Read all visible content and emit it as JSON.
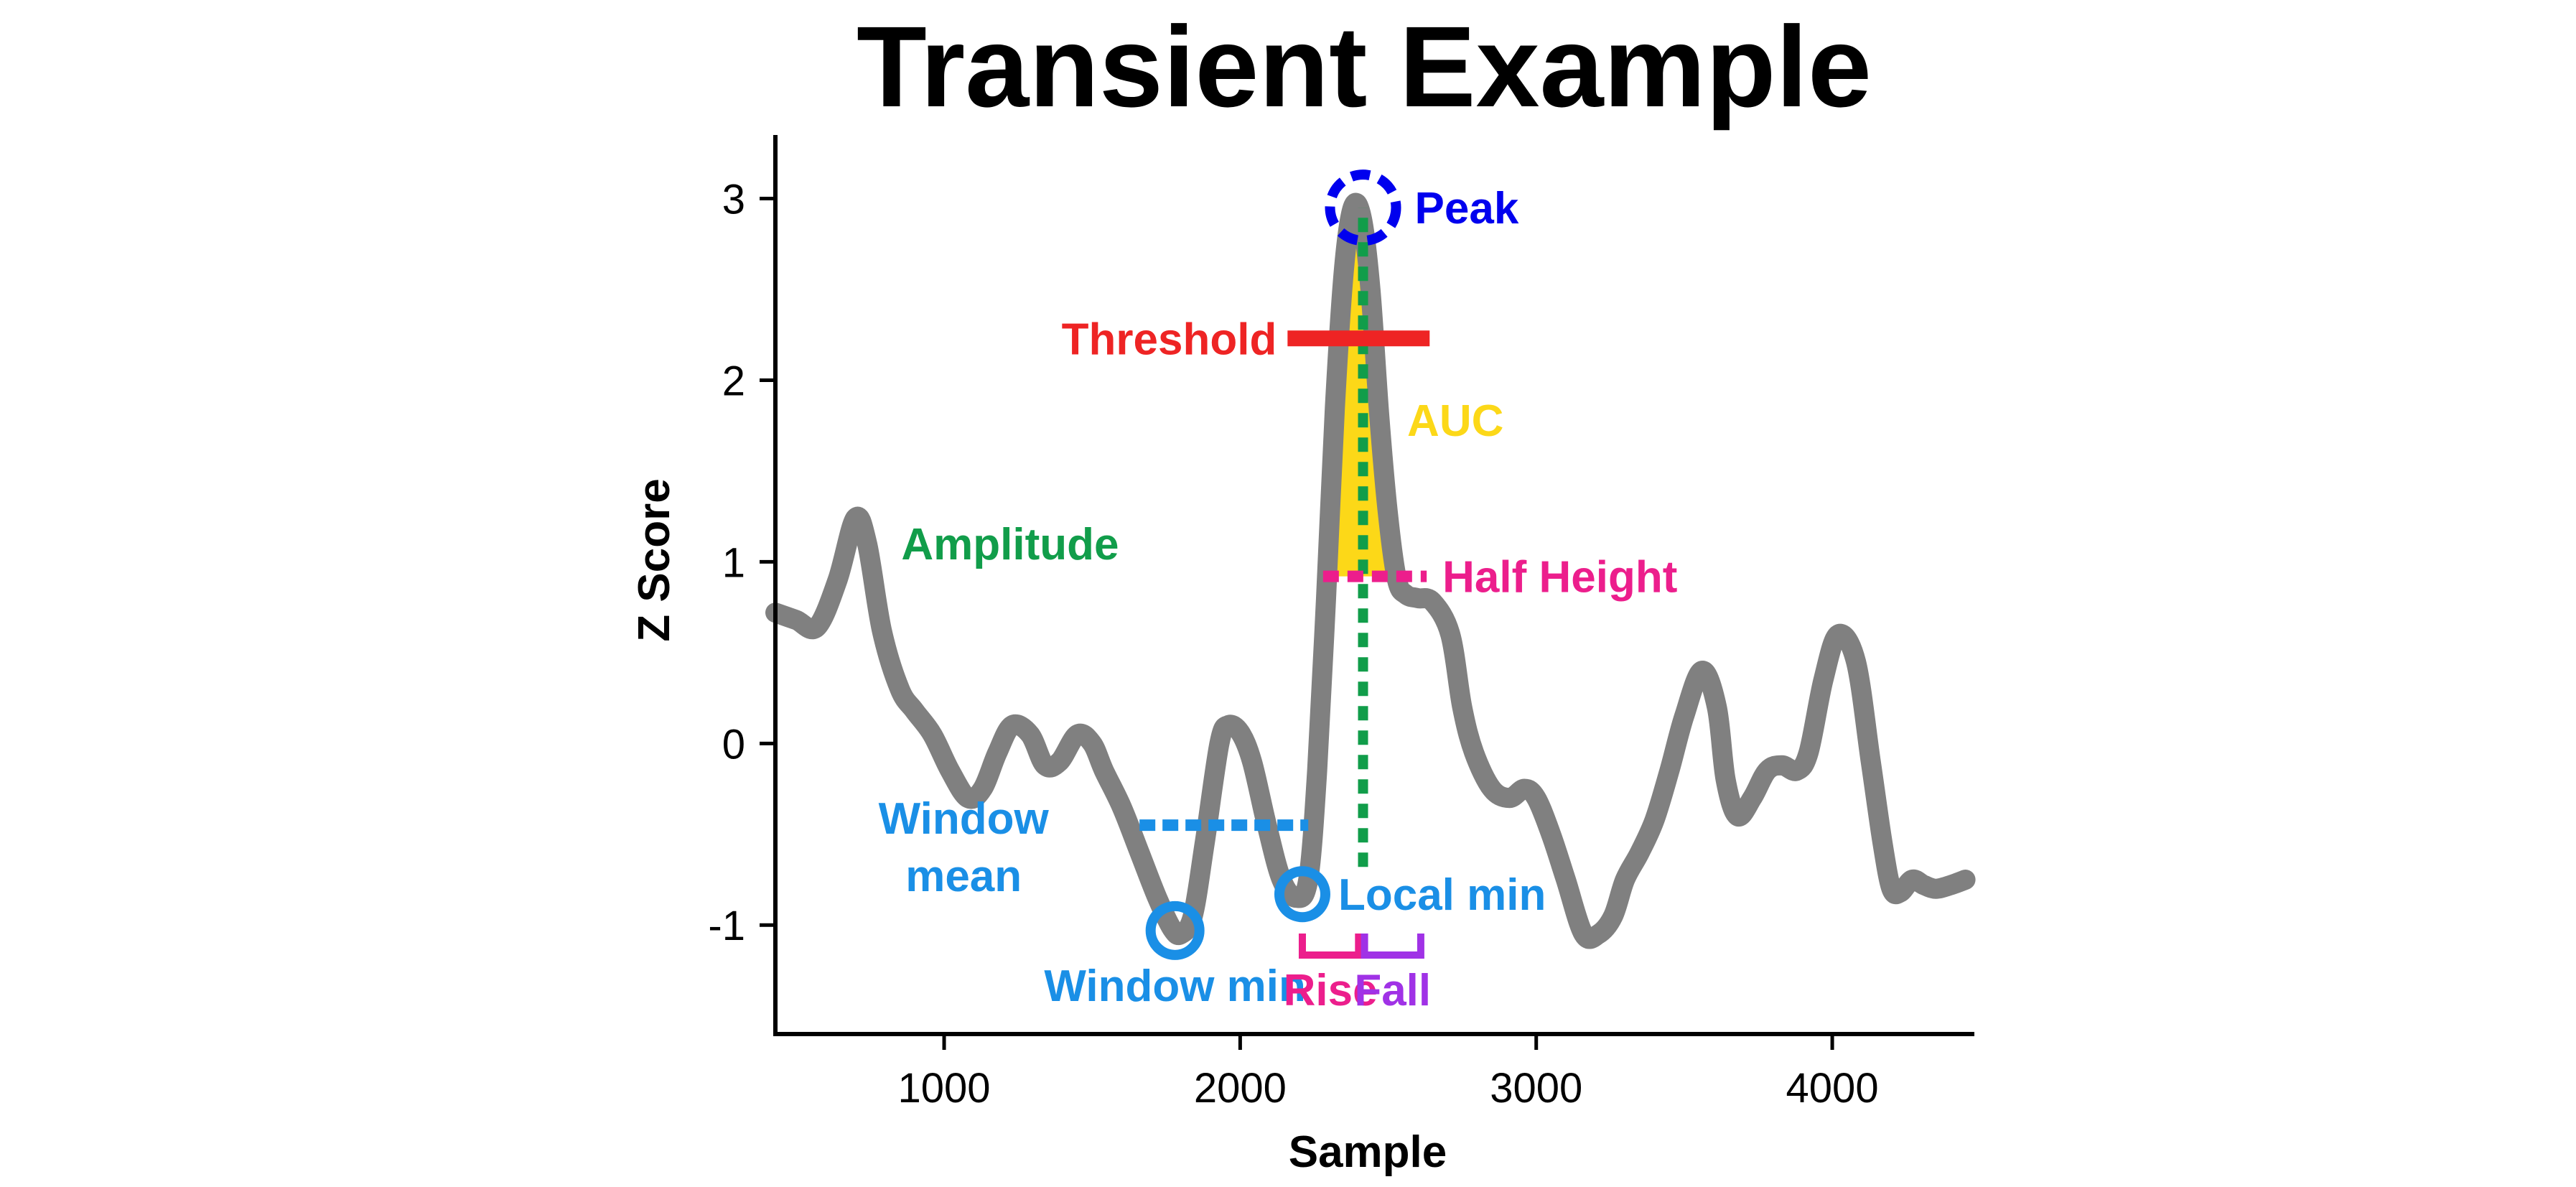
{
  "chart_data": {
    "type": "line",
    "title": "Transient Example",
    "xlabel": "Sample",
    "ylabel": "Z Score",
    "xlim": [
      430,
      4480
    ],
    "ylim": [
      -1.6,
      3.35
    ],
    "xticks": [
      1000,
      2000,
      3000,
      4000
    ],
    "yticks": [
      3,
      2,
      1,
      0,
      -1
    ],
    "grid": false,
    "series": [
      {
        "color": "#808080",
        "x": [
          430,
          500,
          570,
          640,
          700,
          740,
          790,
          850,
          900,
          960,
          1020,
          1080,
          1130,
          1180,
          1230,
          1290,
          1340,
          1390,
          1450,
          1500,
          1540,
          1600,
          1660,
          1720,
          1770,
          1800,
          1840,
          1880,
          1930,
          1960,
          2000,
          2040,
          2090,
          2140,
          2190,
          2230,
          2260,
          2290,
          2320,
          2350,
          2380,
          2410,
          2440,
          2470,
          2500,
          2530,
          2560,
          2600,
          2650,
          2710,
          2750,
          2790,
          2850,
          2910,
          2960,
          3000,
          3050,
          3100,
          3160,
          3210,
          3260,
          3300,
          3350,
          3400,
          3450,
          3500,
          3560,
          3610,
          3640,
          3680,
          3730,
          3780,
          3830,
          3880,
          3920,
          3970,
          4020,
          4080,
          4130,
          4170,
          4200,
          4230,
          4270,
          4310,
          4350,
          4400,
          4450
        ],
        "y": [
          0.72,
          0.68,
          0.64,
          0.9,
          1.24,
          1.1,
          0.62,
          0.3,
          0.18,
          0.05,
          -0.15,
          -0.3,
          -0.25,
          -0.05,
          0.1,
          0.05,
          -0.12,
          -0.1,
          0.05,
          0.0,
          -0.15,
          -0.35,
          -0.6,
          -0.85,
          -1.02,
          -1.05,
          -0.95,
          -0.55,
          0.0,
          0.1,
          0.06,
          -0.1,
          -0.45,
          -0.75,
          -0.85,
          -0.75,
          -0.15,
          0.8,
          1.85,
          2.6,
          2.95,
          2.9,
          2.5,
          1.8,
          1.25,
          0.9,
          0.82,
          0.8,
          0.78,
          0.6,
          0.2,
          -0.05,
          -0.25,
          -0.3,
          -0.25,
          -0.3,
          -0.5,
          -0.75,
          -1.05,
          -1.05,
          -0.95,
          -0.75,
          -0.6,
          -0.42,
          -0.15,
          0.15,
          0.4,
          0.2,
          -0.2,
          -0.4,
          -0.3,
          -0.15,
          -0.12,
          -0.15,
          -0.05,
          0.35,
          0.6,
          0.45,
          -0.1,
          -0.55,
          -0.8,
          -0.82,
          -0.75,
          -0.78,
          -0.8,
          -0.78,
          -0.75
        ]
      }
    ],
    "annotations": {
      "peak": {
        "label": "Peak",
        "x": 2415,
        "y": 2.95,
        "color": "#0000ee"
      },
      "threshold": {
        "label": "Threshold",
        "y": 2.23,
        "x_range": [
          2160,
          2640
        ],
        "color": "#ee2424"
      },
      "auc": {
        "label": "AUC",
        "color": "#fcd818",
        "x_range": [
          2290,
          2540
        ]
      },
      "amplitude": {
        "label": "Amplitude",
        "x": 2415,
        "y_range": [
          -0.68,
          2.95
        ],
        "color": "#119d4a"
      },
      "half_height": {
        "label": "Half Height",
        "y": 0.92,
        "x_range": [
          2280,
          2630
        ],
        "color": "#ec1e8c"
      },
      "window_mean": {
        "label": [
          "Window",
          "mean"
        ],
        "y": -0.45,
        "x_range": [
          1660,
          2230
        ],
        "color": "#1a8fe6"
      },
      "local_min": {
        "label": "Local min",
        "x": 2210,
        "y": -0.83,
        "color": "#1a8fe6"
      },
      "window_min": {
        "label": "Window min",
        "x": 1780,
        "y": -1.03,
        "color": "#1a8fe6"
      },
      "rise": {
        "label": "Rise",
        "x_range": [
          2210,
          2400
        ],
        "color": "#ec1e8c"
      },
      "fall": {
        "label": "Fall",
        "x_range": [
          2420,
          2610
        ],
        "color": "#a032e6"
      }
    }
  }
}
